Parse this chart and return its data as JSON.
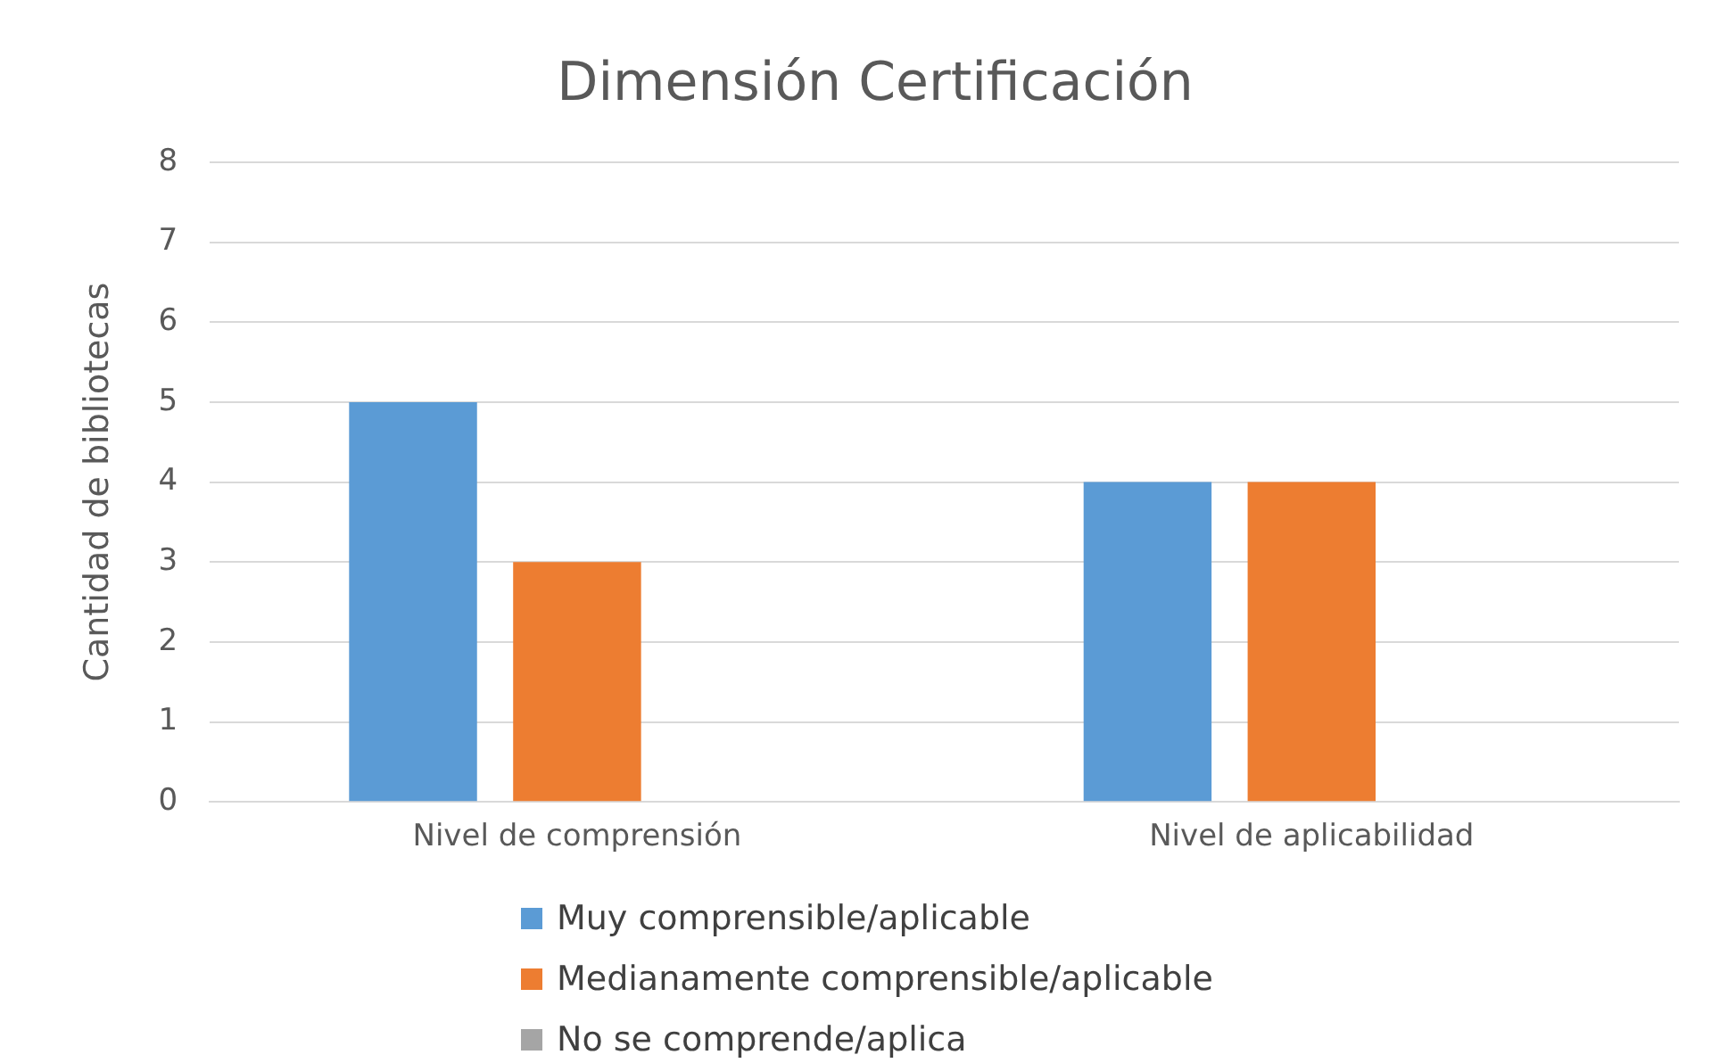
{
  "chart_data": {
    "type": "bar",
    "title": "Dimensión Certificación",
    "ylabel": "Cantidad de bibliotecas",
    "categories": [
      "Nivel de comprensión",
      "Nivel de aplicabilidad"
    ],
    "series": [
      {
        "name": "Muy comprensible/aplicable",
        "color": "#5b9bd5",
        "values": [
          5,
          4
        ]
      },
      {
        "name": "Medianamente comprensible/aplicable",
        "color": "#ed7d31",
        "values": [
          3,
          4
        ]
      },
      {
        "name": "No se comprende/aplica",
        "color": "#a5a5a5",
        "values": [
          0,
          0
        ]
      }
    ],
    "ylim": [
      0,
      8
    ],
    "yticks": [
      0,
      1,
      2,
      3,
      4,
      5,
      6,
      7,
      8
    ],
    "grid": "y",
    "legend": "bottom"
  }
}
